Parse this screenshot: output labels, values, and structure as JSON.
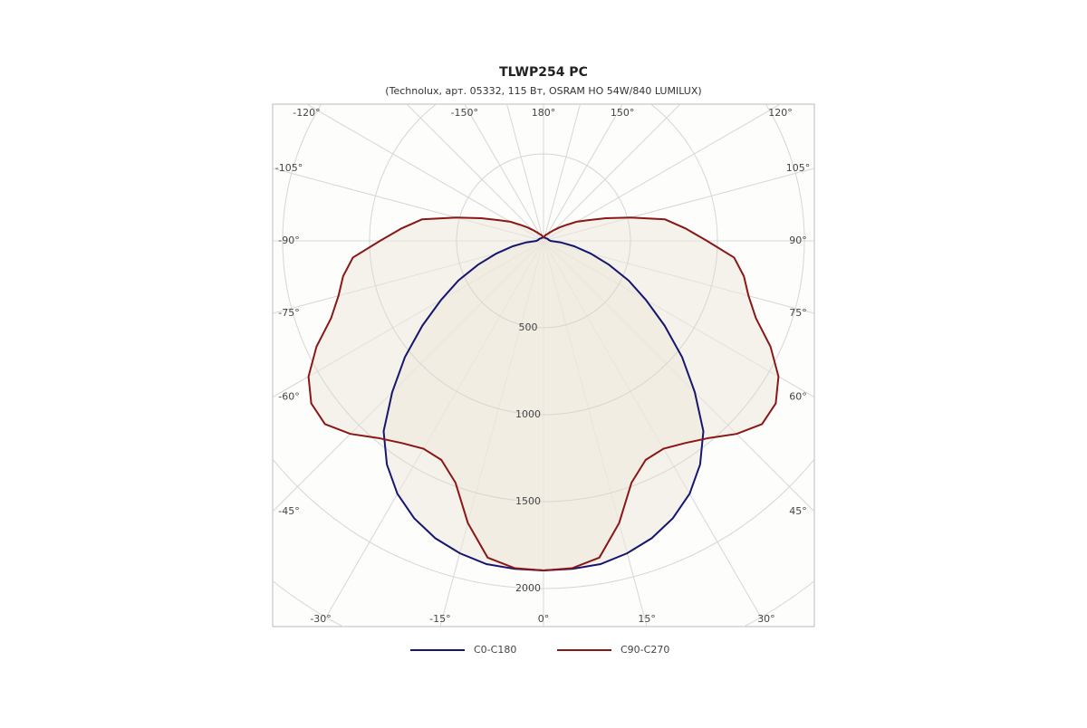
{
  "chart_data": {
    "type": "polar",
    "title": "TLWP254 PC",
    "subtitle": "(Technolux, арт. 05332, 115 Вт, OSRAM HO 54W/840 LUMILUX)",
    "theta": [
      -180,
      -175,
      -170,
      -165,
      -160,
      -155,
      -150,
      -145,
      -140,
      -135,
      -130,
      -125,
      -120,
      -115,
      -110,
      -105,
      -100,
      -95,
      -90,
      -85,
      -80,
      -75,
      -70,
      -65,
      -60,
      -55,
      -50,
      -45,
      -40,
      -35,
      -30,
      -25,
      -20,
      -15,
      -10,
      -5,
      0,
      5,
      10,
      15,
      20,
      25,
      30,
      35,
      40,
      45,
      50,
      55,
      60,
      65,
      70,
      75,
      80,
      85,
      90,
      95,
      100,
      105,
      110,
      115,
      120,
      125,
      130,
      135,
      140,
      145,
      150,
      155,
      160,
      165,
      170,
      175,
      180
    ],
    "series": [
      {
        "name": "C0-C180",
        "color": "#16166e",
        "values": [
          20,
          20,
          20,
          20,
          20,
          20,
          20,
          20,
          20,
          20,
          22,
          24,
          25,
          26,
          28,
          30,
          30,
          35,
          40,
          100,
          180,
          280,
          400,
          540,
          680,
          850,
          1040,
          1230,
          1430,
          1570,
          1680,
          1760,
          1820,
          1860,
          1888,
          1894,
          1896,
          1894,
          1888,
          1860,
          1820,
          1760,
          1680,
          1570,
          1430,
          1230,
          1040,
          850,
          680,
          540,
          400,
          280,
          180,
          100,
          40,
          35,
          30,
          30,
          28,
          26,
          25,
          24,
          22,
          20,
          20,
          20,
          20,
          20,
          20,
          20,
          20,
          20,
          20
        ]
      },
      {
        "name": "C90-C270",
        "color": "#8a1616",
        "values": [
          20,
          20,
          25,
          30,
          35,
          40,
          45,
          55,
          70,
          90,
          120,
          160,
          220,
          280,
          380,
          520,
          710,
          820,
          940,
          1100,
          1170,
          1220,
          1300,
          1440,
          1560,
          1630,
          1640,
          1570,
          1480,
          1420,
          1380,
          1390,
          1480,
          1680,
          1850,
          1890,
          1896,
          1890,
          1850,
          1680,
          1480,
          1390,
          1380,
          1420,
          1480,
          1570,
          1640,
          1630,
          1560,
          1440,
          1300,
          1220,
          1170,
          1100,
          940,
          820,
          710,
          520,
          380,
          280,
          220,
          160,
          120,
          90,
          70,
          55,
          45,
          40,
          35,
          30,
          25,
          20,
          20
        ]
      }
    ],
    "rlim": [
      0,
      2500
    ],
    "rticks": [
      500,
      1000,
      1500,
      2000
    ],
    "angle_ticks": [
      {
        "value": -120,
        "label": "-120°"
      },
      {
        "value": -150,
        "label": "-150°"
      },
      {
        "value": 180,
        "label": "180°"
      },
      {
        "value": 150,
        "label": "150°"
      },
      {
        "value": 120,
        "label": "120°"
      },
      {
        "value": -105,
        "label": "-105°"
      },
      {
        "value": -90,
        "label": "-90°"
      },
      {
        "value": -75,
        "label": "-75°"
      },
      {
        "value": -60,
        "label": "-60°"
      },
      {
        "value": -45,
        "label": "-45°"
      },
      {
        "value": 105,
        "label": "105°"
      },
      {
        "value": 90,
        "label": "90°"
      },
      {
        "value": 75,
        "label": "75°"
      },
      {
        "value": 60,
        "label": "60°"
      },
      {
        "value": 45,
        "label": "45°"
      },
      {
        "value": -30,
        "label": "-30°"
      },
      {
        "value": -15,
        "label": "-15°"
      },
      {
        "value": 0,
        "label": "0°"
      },
      {
        "value": 15,
        "label": "15°"
      },
      {
        "value": 30,
        "label": "30°"
      }
    ],
    "grid": true
  }
}
